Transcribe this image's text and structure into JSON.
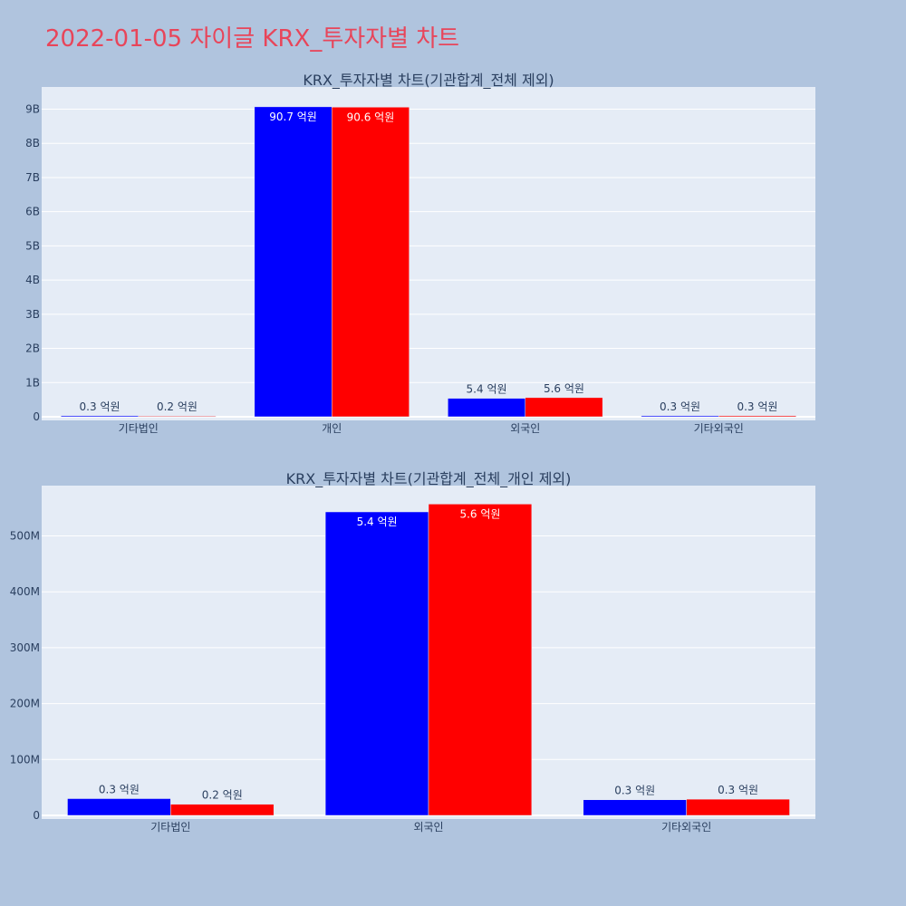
{
  "title": "2022-01-05 자이글 KRX_투자자별 차트",
  "colors": {
    "page_background": "#b0c4de",
    "plot_background": "#e5ecf6",
    "title": "#e8455a",
    "series_1": "#0000ff",
    "series_2": "#ff0000"
  },
  "chart_data": [
    {
      "type": "bar",
      "title": "KRX_투자자별 차트(기관합계_전체 제외)",
      "categories": [
        "기타법인",
        "개인",
        "외국인",
        "기타외국인"
      ],
      "series": [
        {
          "color": "#0000ff",
          "values": [
            30000000,
            9070000000,
            540000000,
            30000000
          ],
          "labels": [
            "0.3 억원",
            "90.7 억원",
            "5.4 억원",
            "0.3 억원"
          ]
        },
        {
          "color": "#ff0000",
          "values": [
            20000000,
            9060000000,
            560000000,
            30000000
          ],
          "labels": [
            "0.2 억원",
            "90.6 억원",
            "5.6 억원",
            "0.3 억원"
          ]
        }
      ],
      "yticks": [
        "0",
        "1B",
        "2B",
        "3B",
        "4B",
        "5B",
        "6B",
        "7B",
        "8B",
        "9B"
      ],
      "ytick_values": [
        0,
        1000000000,
        2000000000,
        3000000000,
        4000000000,
        5000000000,
        6000000000,
        7000000000,
        8000000000,
        9000000000
      ],
      "ylim": [
        0,
        9650000000
      ],
      "grid": true
    },
    {
      "type": "bar",
      "title": "KRX_투자자별 차트(기관합계_전체_개인 제외)",
      "categories": [
        "기타법인",
        "외국인",
        "기타외국인"
      ],
      "series": [
        {
          "color": "#0000ff",
          "values": [
            30000000,
            543000000,
            28000000
          ],
          "labels": [
            "0.3 억원",
            "5.4 억원",
            "0.3 억원"
          ]
        },
        {
          "color": "#ff0000",
          "values": [
            20000000,
            557000000,
            29000000
          ],
          "labels": [
            "0.2 억원",
            "5.6 억원",
            "0.3 억원"
          ]
        }
      ],
      "yticks": [
        "0",
        "100M",
        "200M",
        "300M",
        "400M",
        "500M"
      ],
      "ytick_values": [
        0,
        100000000,
        200000000,
        300000000,
        400000000,
        500000000
      ],
      "ylim": [
        0,
        590000000
      ],
      "grid": true
    }
  ]
}
